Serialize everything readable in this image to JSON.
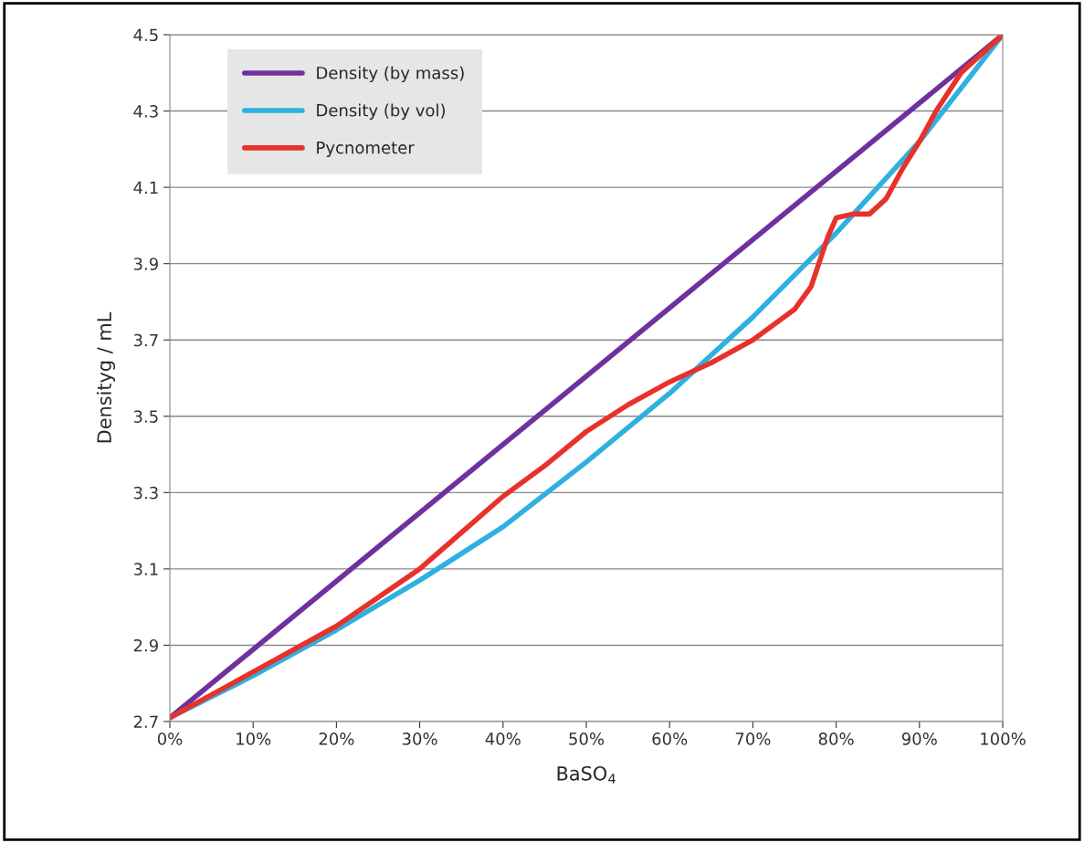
{
  "chart_data": {
    "type": "line",
    "xlabel": "BaSO$_{4}$",
    "ylabel": "Densityg / mL",
    "xlim": [
      0,
      100
    ],
    "ylim": [
      2.7,
      4.5
    ],
    "xticks": [
      {
        "value": 0,
        "label": "0%"
      },
      {
        "value": 10,
        "label": "10%"
      },
      {
        "value": 20,
        "label": "20%"
      },
      {
        "value": 30,
        "label": "30%"
      },
      {
        "value": 40,
        "label": "40%"
      },
      {
        "value": 50,
        "label": "50%"
      },
      {
        "value": 60,
        "label": "60%"
      },
      {
        "value": 70,
        "label": "70%"
      },
      {
        "value": 80,
        "label": "80%"
      },
      {
        "value": 90,
        "label": "90%"
      },
      {
        "value": 100,
        "label": "100%"
      }
    ],
    "yticks": [
      2.7,
      2.9,
      3.1,
      3.3,
      3.5,
      3.7,
      3.9,
      4.1,
      4.3,
      4.5
    ],
    "grid": "y",
    "legend": "top left",
    "marker": "none",
    "line_style": "solid",
    "series": [
      {
        "name": "Density (by mass)",
        "color": "#7030a0",
        "x": [
          0,
          100
        ],
        "values": [
          2.71,
          4.5
        ]
      },
      {
        "name": "Density (by vol)",
        "color": "#2eb0e0",
        "x": [
          0,
          10,
          20,
          30,
          40,
          50,
          60,
          70,
          80,
          90,
          100
        ],
        "values": [
          2.71,
          2.82,
          2.94,
          3.07,
          3.21,
          3.38,
          3.56,
          3.76,
          3.98,
          4.22,
          4.5
        ]
      },
      {
        "name": "Pycnometer",
        "color": "#e8312a",
        "x": [
          0,
          10,
          20,
          30,
          40,
          45,
          50,
          55,
          60,
          65,
          70,
          75,
          77,
          79,
          80,
          82,
          84,
          86,
          88,
          90,
          92,
          95,
          100
        ],
        "values": [
          2.71,
          2.83,
          2.95,
          3.1,
          3.29,
          3.37,
          3.46,
          3.53,
          3.59,
          3.64,
          3.7,
          3.78,
          3.84,
          3.97,
          4.02,
          4.03,
          4.03,
          4.07,
          4.15,
          4.22,
          4.3,
          4.4,
          4.5
        ]
      }
    ]
  }
}
